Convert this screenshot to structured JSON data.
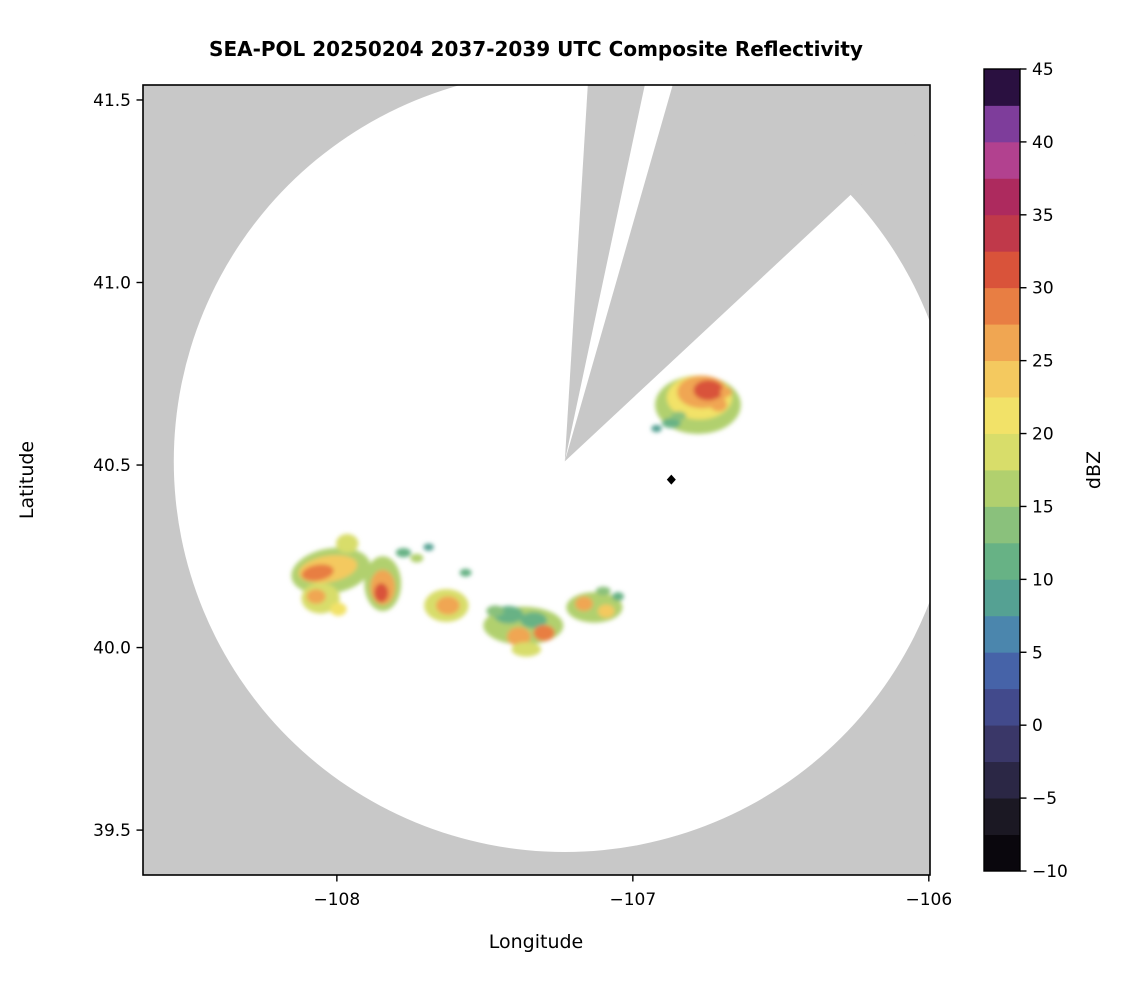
{
  "title": "SEA-POL 20250204 2037-2039 UTC Composite Reflectivity",
  "chart_data": {
    "type": "heatmap",
    "title": "SEA-POL 20250204 2037-2039 UTC Composite Reflectivity",
    "xlabel": "Longitude",
    "ylabel": "Latitude",
    "xlim": [
      -108.655,
      -105.996
    ],
    "ylim": [
      39.377,
      41.541
    ],
    "xticks": [
      -108,
      -107,
      -106
    ],
    "yticks": [
      39.5,
      40.0,
      40.5,
      41.0,
      41.5
    ],
    "grid": false,
    "colorbar": {
      "label": "dBZ",
      "min": -10,
      "max": 45,
      "step": 2.5,
      "ticks": [
        45,
        40,
        35,
        30,
        25,
        20,
        15,
        10,
        5,
        0,
        -5,
        -10
      ],
      "colors": [
        "#0a070d",
        "#1b1823",
        "#2b2745",
        "#3a3768",
        "#424a8c",
        "#4663a8",
        "#4b86ad",
        "#55a193",
        "#67b285",
        "#8ac17c",
        "#b1d06e",
        "#d8dd6a",
        "#f2e268",
        "#f4c95f",
        "#f0a652",
        "#e87e43",
        "#d9533a",
        "#c0394a",
        "#ad2a5e",
        "#b2418f",
        "#7e3d9b",
        "#2a1040"
      ]
    },
    "radar_coverage": {
      "center_lon": -107.23,
      "center_lat": 40.51,
      "radius_lon_deg": 1.321,
      "radius_lat_deg": 1.07,
      "blocked_sectors_azimuth_deg": [
        [
          3.5,
          12
        ],
        [
          16,
          47
        ]
      ],
      "coverage_color": "#ffffff",
      "no_data_color": "#c8c8c8"
    },
    "radar_marker": {
      "lon": -106.87,
      "lat": 40.46,
      "shape": "diamond",
      "color": "#000000"
    },
    "echoes": [
      {
        "lon": -106.78,
        "lat": 40.665,
        "rx": 0.145,
        "ry": 0.08,
        "dbz": 15
      },
      {
        "lon": -106.775,
        "lat": 40.685,
        "rx": 0.11,
        "ry": 0.06,
        "dbz": 20
      },
      {
        "lon": -106.8,
        "lat": 40.7,
        "rx": 0.05,
        "ry": 0.035,
        "dbz": 22
      },
      {
        "lon": -106.765,
        "lat": 40.7,
        "rx": 0.085,
        "ry": 0.045,
        "dbz": 25
      },
      {
        "lon": -106.745,
        "lat": 40.705,
        "rx": 0.05,
        "ry": 0.028,
        "dbz": 30
      },
      {
        "lon": -106.71,
        "lat": 40.665,
        "rx": 0.028,
        "ry": 0.018,
        "dbz": 27
      },
      {
        "lon": -106.685,
        "lat": 40.7,
        "rx": 0.02,
        "ry": 0.013,
        "dbz": 25
      },
      {
        "lon": -106.87,
        "lat": 40.615,
        "rx": 0.032,
        "ry": 0.014,
        "dbz": 11
      },
      {
        "lon": -106.92,
        "lat": 40.6,
        "rx": 0.018,
        "ry": 0.01,
        "dbz": 9
      },
      {
        "lon": -106.845,
        "lat": 40.635,
        "rx": 0.025,
        "ry": 0.012,
        "dbz": 14
      },
      {
        "lon": -108.02,
        "lat": 40.21,
        "rx": 0.135,
        "ry": 0.062,
        "dbz": 16,
        "rot": -10
      },
      {
        "lon": -108.03,
        "lat": 40.215,
        "rx": 0.1,
        "ry": 0.036,
        "dbz": 24,
        "rot": -10
      },
      {
        "lon": -108.065,
        "lat": 40.205,
        "rx": 0.055,
        "ry": 0.022,
        "dbz": 29,
        "rot": -10
      },
      {
        "lon": -107.965,
        "lat": 40.285,
        "rx": 0.038,
        "ry": 0.026,
        "dbz": 18
      },
      {
        "lon": -108.055,
        "lat": 40.135,
        "rx": 0.065,
        "ry": 0.042,
        "dbz": 18
      },
      {
        "lon": -108.07,
        "lat": 40.14,
        "rx": 0.032,
        "ry": 0.02,
        "dbz": 25
      },
      {
        "lon": -107.995,
        "lat": 40.105,
        "rx": 0.028,
        "ry": 0.018,
        "dbz": 21
      },
      {
        "lon": -107.845,
        "lat": 40.175,
        "rx": 0.062,
        "ry": 0.075,
        "dbz": 17
      },
      {
        "lon": -107.845,
        "lat": 40.165,
        "rx": 0.042,
        "ry": 0.048,
        "dbz": 26
      },
      {
        "lon": -107.85,
        "lat": 40.15,
        "rx": 0.024,
        "ry": 0.026,
        "dbz": 30
      },
      {
        "lon": -107.775,
        "lat": 40.26,
        "rx": 0.026,
        "ry": 0.013,
        "dbz": 12
      },
      {
        "lon": -107.73,
        "lat": 40.245,
        "rx": 0.022,
        "ry": 0.012,
        "dbz": 17
      },
      {
        "lon": -107.63,
        "lat": 40.115,
        "rx": 0.075,
        "ry": 0.045,
        "dbz": 18
      },
      {
        "lon": -107.625,
        "lat": 40.115,
        "rx": 0.04,
        "ry": 0.025,
        "dbz": 25
      },
      {
        "lon": -107.565,
        "lat": 40.205,
        "rx": 0.02,
        "ry": 0.011,
        "dbz": 11
      },
      {
        "lon": -107.69,
        "lat": 40.275,
        "rx": 0.018,
        "ry": 0.01,
        "dbz": 9
      },
      {
        "lon": -107.37,
        "lat": 40.06,
        "rx": 0.135,
        "ry": 0.052,
        "dbz": 16
      },
      {
        "lon": -107.42,
        "lat": 40.09,
        "rx": 0.05,
        "ry": 0.024,
        "dbz": 12
      },
      {
        "lon": -107.335,
        "lat": 40.075,
        "rx": 0.045,
        "ry": 0.022,
        "dbz": 11
      },
      {
        "lon": -107.385,
        "lat": 40.03,
        "rx": 0.04,
        "ry": 0.026,
        "dbz": 26
      },
      {
        "lon": -107.3,
        "lat": 40.04,
        "rx": 0.036,
        "ry": 0.022,
        "dbz": 28
      },
      {
        "lon": -107.36,
        "lat": 39.995,
        "rx": 0.05,
        "ry": 0.02,
        "dbz": 18
      },
      {
        "lon": -107.465,
        "lat": 40.1,
        "rx": 0.03,
        "ry": 0.015,
        "dbz": 13
      },
      {
        "lon": -107.13,
        "lat": 40.11,
        "rx": 0.095,
        "ry": 0.042,
        "dbz": 17
      },
      {
        "lon": -107.165,
        "lat": 40.12,
        "rx": 0.03,
        "ry": 0.02,
        "dbz": 25
      },
      {
        "lon": -107.09,
        "lat": 40.1,
        "rx": 0.028,
        "ry": 0.018,
        "dbz": 24
      },
      {
        "lon": -107.05,
        "lat": 40.14,
        "rx": 0.02,
        "ry": 0.012,
        "dbz": 12
      },
      {
        "lon": -107.1,
        "lat": 40.155,
        "rx": 0.025,
        "ry": 0.012,
        "dbz": 14
      }
    ]
  }
}
